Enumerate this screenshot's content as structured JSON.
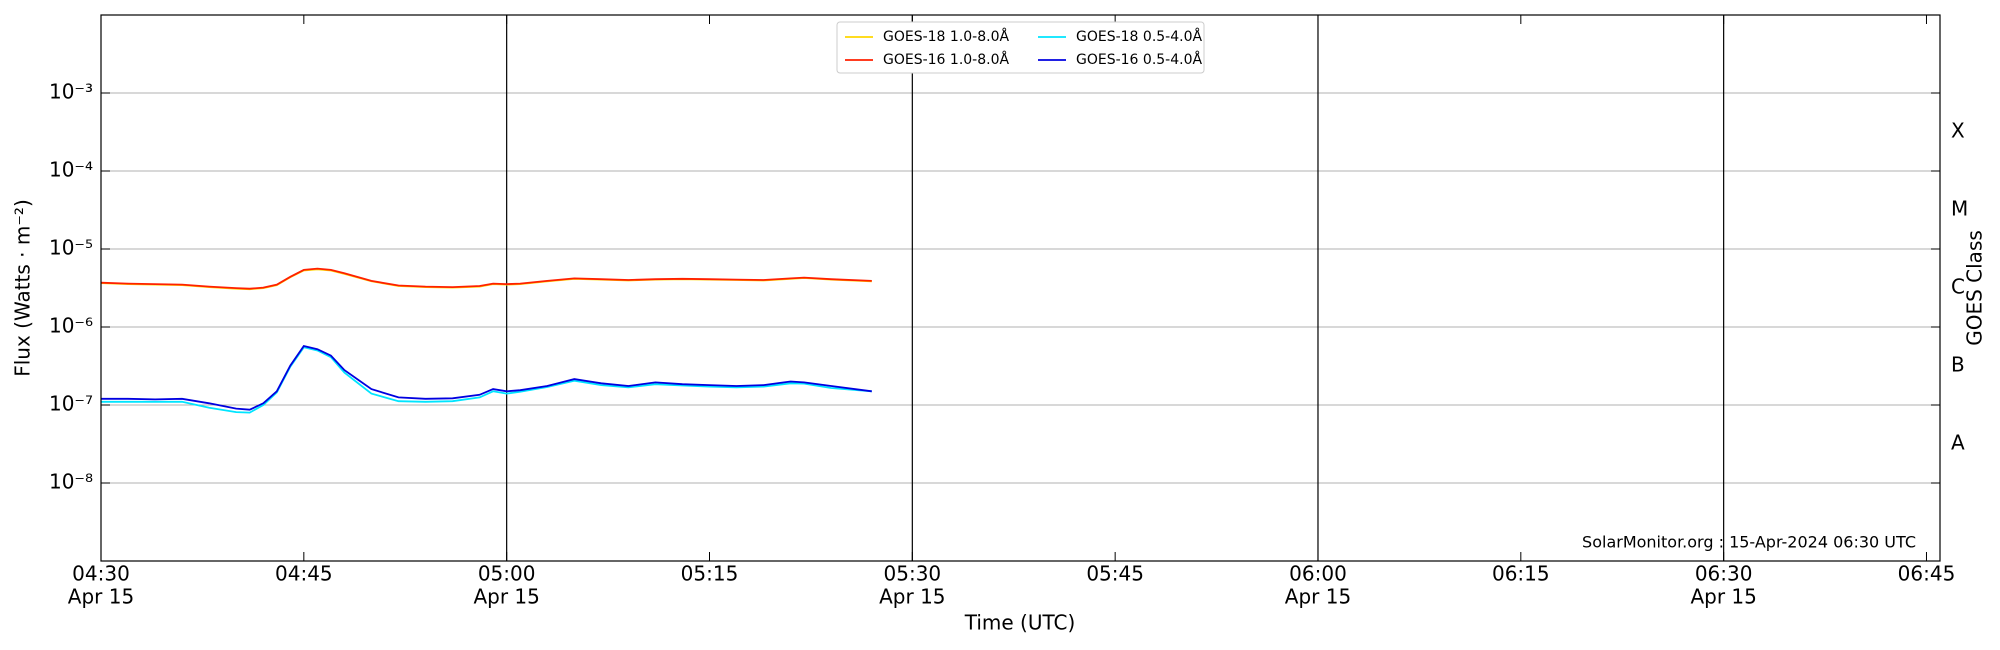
{
  "chart_data": {
    "type": "line",
    "x_label": "Time (UTC)",
    "y_label": "Flux (Watts · m⁻²)",
    "y2_label": "GOES Class",
    "annotation": "SolarMonitor.org : 15-Apr-2024 06:30 UTC",
    "log_y": true,
    "legend": "upper center",
    "x": [
      "04:30",
      "04:32",
      "04:34",
      "04:36",
      "04:38",
      "04:40",
      "04:41",
      "04:42",
      "04:43",
      "04:44",
      "04:45",
      "04:46",
      "04:47",
      "04:48",
      "04:50",
      "04:52",
      "04:54",
      "04:56",
      "04:58",
      "04:59",
      "05:00",
      "05:01",
      "05:03",
      "05:05",
      "05:07",
      "05:09",
      "05:11",
      "05:13",
      "05:15",
      "05:17",
      "05:19",
      "05:21",
      "05:22",
      "05:24",
      "05:27"
    ],
    "series": [
      {
        "name": "GOES-18 1.0-8.0Å",
        "color": "#ffd700",
        "values": [
          3.65e-06,
          3.55e-06,
          3.5e-06,
          3.45e-06,
          3.25e-06,
          3.1e-06,
          3.05e-06,
          3.15e-06,
          3.45e-06,
          4.35e-06,
          5.3e-06,
          5.5e-06,
          5.3e-06,
          4.8e-06,
          3.85e-06,
          3.35e-06,
          3.25e-06,
          3.2e-06,
          3.3e-06,
          3.55e-06,
          3.5e-06,
          3.55e-06,
          3.85e-06,
          4.15e-06,
          4.05e-06,
          3.95e-06,
          4.05e-06,
          4.1e-06,
          4.05e-06,
          4e-06,
          3.95e-06,
          4.15e-06,
          4.25e-06,
          4.05e-06,
          3.85e-06
        ]
      },
      {
        "name": "GOES-16 1.0-8.0Å",
        "color": "#ff2000",
        "values": [
          3.7e-06,
          3.6e-06,
          3.55e-06,
          3.5e-06,
          3.3e-06,
          3.15e-06,
          3.1e-06,
          3.2e-06,
          3.5e-06,
          4.4e-06,
          5.4e-06,
          5.6e-06,
          5.4e-06,
          4.9e-06,
          3.9e-06,
          3.4e-06,
          3.3e-06,
          3.25e-06,
          3.35e-06,
          3.6e-06,
          3.55e-06,
          3.6e-06,
          3.9e-06,
          4.2e-06,
          4.1e-06,
          4e-06,
          4.1e-06,
          4.15e-06,
          4.1e-06,
          4.05e-06,
          4e-06,
          4.2e-06,
          4.3e-06,
          4.1e-06,
          3.9e-06
        ]
      },
      {
        "name": "GOES-18 0.5-4.0Å",
        "color": "#00e5ff",
        "values": [
          1.1e-07,
          1.1e-07,
          1.1e-07,
          1.1e-07,
          9.2e-08,
          8.1e-08,
          8e-08,
          1e-07,
          1.45e-07,
          3.1e-07,
          5.5e-07,
          5e-07,
          4.1e-07,
          2.6e-07,
          1.4e-07,
          1.12e-07,
          1.1e-07,
          1.12e-07,
          1.25e-07,
          1.5e-07,
          1.4e-07,
          1.48e-07,
          1.7e-07,
          2.05e-07,
          1.8e-07,
          1.68e-07,
          1.85e-07,
          1.78e-07,
          1.72e-07,
          1.68e-07,
          1.72e-07,
          1.9e-07,
          1.88e-07,
          1.65e-07,
          1.5e-07
        ]
      },
      {
        "name": "GOES-16 0.5-4.0Å",
        "color": "#0000e0",
        "values": [
          1.2e-07,
          1.2e-07,
          1.18e-07,
          1.2e-07,
          1.05e-07,
          9e-08,
          8.7e-08,
          1.05e-07,
          1.5e-07,
          3.2e-07,
          5.7e-07,
          5.2e-07,
          4.3e-07,
          2.8e-07,
          1.6e-07,
          1.25e-07,
          1.2e-07,
          1.22e-07,
          1.35e-07,
          1.6e-07,
          1.5e-07,
          1.55e-07,
          1.75e-07,
          2.15e-07,
          1.9e-07,
          1.75e-07,
          1.95e-07,
          1.85e-07,
          1.8e-07,
          1.75e-07,
          1.8e-07,
          2e-07,
          1.95e-07,
          1.75e-07,
          1.5e-07
        ]
      }
    ],
    "xlim": [
      "04:30",
      "06:46"
    ],
    "xticks": [
      {
        "value": "04:30",
        "date": "Apr 15"
      },
      "04:45",
      {
        "value": "05:00",
        "date": "Apr 15"
      },
      "05:15",
      {
        "value": "05:30",
        "date": "Apr 15"
      },
      "05:45",
      {
        "value": "06:00",
        "date": "Apr 15"
      },
      "06:15",
      {
        "value": "06:30",
        "date": "Apr 15"
      },
      "06:45"
    ],
    "ylim": [
      1e-09,
      0.01
    ],
    "yticks": [
      {
        "value": 0.001,
        "label": "10⁻³"
      },
      {
        "value": 0.0001,
        "label": "10⁻⁴"
      },
      {
        "value": 1e-05,
        "label": "10⁻⁵"
      },
      {
        "value": 1e-06,
        "label": "10⁻⁶"
      },
      {
        "value": 1e-07,
        "label": "10⁻⁷"
      },
      {
        "value": 1e-08,
        "label": "10⁻⁸"
      }
    ],
    "class_ticks": [
      {
        "value": 0.0003162,
        "label": "X"
      },
      {
        "value": 3.162e-05,
        "label": "M"
      },
      {
        "value": 3.162e-06,
        "label": "C"
      },
      {
        "value": 3.162e-07,
        "label": "B"
      },
      {
        "value": 3.162e-08,
        "label": "A"
      }
    ],
    "grid": true
  }
}
